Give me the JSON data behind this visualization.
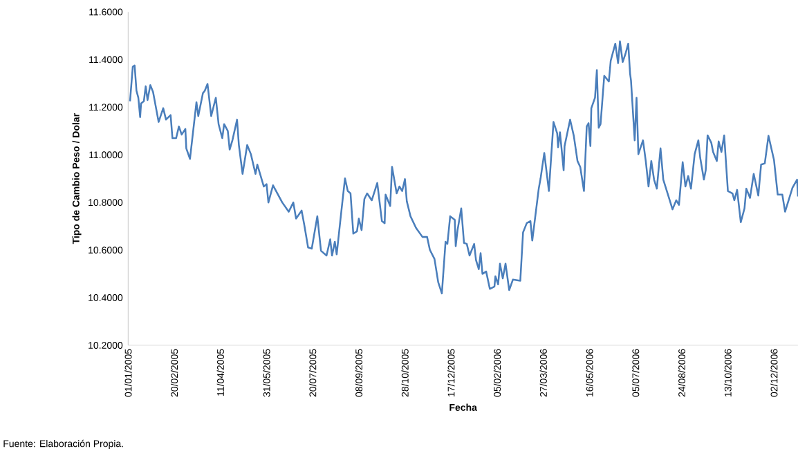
{
  "chart_data": {
    "type": "line",
    "xlabel": "Fecha",
    "ylabel": "Tipo de Cambio Peso / Dolar",
    "annotations": [
      "Fuente: Elaboración Propia."
    ],
    "xlim": [
      "2005-01-01",
      "2006-12-28"
    ],
    "ylim": [
      10.2,
      11.6
    ],
    "xticks": [
      {
        "value": "2005-01-01",
        "label": "01/01/2005"
      },
      {
        "value": "2005-02-20",
        "label": "20/02/2005"
      },
      {
        "value": "2005-04-11",
        "label": "11/04/2005"
      },
      {
        "value": "2005-05-31",
        "label": "31/05/2005"
      },
      {
        "value": "2005-07-20",
        "label": "20/07/2005"
      },
      {
        "value": "2005-09-08",
        "label": "08/09/2005"
      },
      {
        "value": "2005-10-28",
        "label": "28/10/2005"
      },
      {
        "value": "2005-12-17",
        "label": "17/12/2005"
      },
      {
        "value": "2006-02-05",
        "label": "05/02/2006"
      },
      {
        "value": "2006-03-27",
        "label": "27/03/2006"
      },
      {
        "value": "2006-05-16",
        "label": "16/05/2006"
      },
      {
        "value": "2006-07-05",
        "label": "05/07/2006"
      },
      {
        "value": "2006-08-24",
        "label": "24/08/2006"
      },
      {
        "value": "2006-10-13",
        "label": "13/10/2006"
      },
      {
        "value": "2006-12-02",
        "label": "02/12/2006"
      }
    ],
    "yticks": [
      {
        "value": 10.2,
        "label": "10.2000"
      },
      {
        "value": 10.4,
        "label": "10.4000"
      },
      {
        "value": 10.6,
        "label": "10.6000"
      },
      {
        "value": 10.8,
        "label": "10.8000"
      },
      {
        "value": 11.0,
        "label": "11.0000"
      },
      {
        "value": 11.2,
        "label": "11.2000"
      },
      {
        "value": 11.4,
        "label": "11.4000"
      },
      {
        "value": 11.6,
        "label": "11.6000"
      }
    ],
    "marker": "none",
    "line_style": "solid",
    "series": [
      {
        "color": "#4a7ebb",
        "x": [
          "2005-01-03",
          "2005-01-06",
          "2005-01-08",
          "2005-01-10",
          "2005-01-12",
          "2005-01-14",
          "2005-01-15",
          "2005-01-18",
          "2005-01-20",
          "2005-01-22",
          "2005-01-25",
          "2005-01-28",
          "2005-02-03",
          "2005-02-08",
          "2005-02-11",
          "2005-02-16",
          "2005-02-18",
          "2005-02-22",
          "2005-02-25",
          "2005-02-28",
          "2005-03-04",
          "2005-03-05",
          "2005-03-09",
          "2005-03-16",
          "2005-03-18",
          "2005-03-23",
          "2005-03-25",
          "2005-03-28",
          "2005-04-01",
          "2005-04-06",
          "2005-04-09",
          "2005-04-13",
          "2005-04-15",
          "2005-04-19",
          "2005-04-21",
          "2005-04-24",
          "2005-04-29",
          "2005-05-01",
          "2005-05-05",
          "2005-05-10",
          "2005-05-14",
          "2005-05-19",
          "2005-05-21",
          "2005-05-28",
          "2005-05-31",
          "2005-06-02",
          "2005-06-07",
          "2005-06-17",
          "2005-06-24",
          "2005-06-29",
          "2005-07-02",
          "2005-07-08",
          "2005-07-11",
          "2005-07-15",
          "2005-07-19",
          "2005-07-25",
          "2005-07-29",
          "2005-08-04",
          "2005-08-08",
          "2005-08-10",
          "2005-08-13",
          "2005-08-15",
          "2005-08-20",
          "2005-08-24",
          "2005-08-27",
          "2005-08-30",
          "2005-09-02",
          "2005-09-06",
          "2005-09-08",
          "2005-09-11",
          "2005-09-14",
          "2005-09-17",
          "2005-09-22",
          "2005-09-28",
          "2005-10-03",
          "2005-10-06",
          "2005-10-07",
          "2005-10-12",
          "2005-10-14",
          "2005-10-19",
          "2005-10-22",
          "2005-10-25",
          "2005-10-28",
          "2005-10-30",
          "2005-11-03",
          "2005-11-09",
          "2005-11-16",
          "2005-11-21",
          "2005-11-24",
          "2005-11-29",
          "2005-12-03",
          "2005-12-07",
          "2005-12-11",
          "2005-12-13",
          "2005-12-16",
          "2005-12-21",
          "2005-12-22",
          "2005-12-24",
          "2005-12-28",
          "2005-12-31",
          "2006-01-03",
          "2006-01-06",
          "2006-01-11",
          "2006-01-13",
          "2006-01-16",
          "2006-01-18",
          "2006-01-20",
          "2006-01-24",
          "2006-01-28",
          "2006-02-02",
          "2006-02-03",
          "2006-02-06",
          "2006-02-08",
          "2006-02-11",
          "2006-02-14",
          "2006-02-18",
          "2006-02-22",
          "2006-03-02",
          "2006-03-05",
          "2006-03-09",
          "2006-03-13",
          "2006-03-15",
          "2006-03-22",
          "2006-03-24",
          "2006-03-28",
          "2006-04-02",
          "2006-04-07",
          "2006-04-11",
          "2006-04-12",
          "2006-04-14",
          "2006-04-18",
          "2006-04-19",
          "2006-04-25",
          "2006-04-29",
          "2006-05-03",
          "2006-05-06",
          "2006-05-10",
          "2006-05-13",
          "2006-05-15",
          "2006-05-17",
          "2006-05-18",
          "2006-05-22",
          "2006-05-24",
          "2006-05-26",
          "2006-05-28",
          "2006-06-01",
          "2006-06-06",
          "2006-06-08",
          "2006-06-13",
          "2006-06-16",
          "2006-06-18",
          "2006-06-21",
          "2006-06-24",
          "2006-06-27",
          "2006-06-29",
          "2006-06-30",
          "2006-07-04",
          "2006-07-06",
          "2006-07-08",
          "2006-07-13",
          "2006-07-16",
          "2006-07-19",
          "2006-07-22",
          "2006-07-25",
          "2006-07-28",
          "2006-08-01",
          "2006-08-04",
          "2006-08-11",
          "2006-08-14",
          "2006-08-18",
          "2006-08-21",
          "2006-08-25",
          "2006-08-28",
          "2006-08-31",
          "2006-09-03",
          "2006-09-07",
          "2006-09-11",
          "2006-09-13",
          "2006-09-17",
          "2006-09-19",
          "2006-09-21",
          "2006-09-25",
          "2006-09-27",
          "2006-10-01",
          "2006-10-03",
          "2006-10-06",
          "2006-10-09",
          "2006-10-13",
          "2006-10-18",
          "2006-10-20",
          "2006-10-23",
          "2006-10-27",
          "2006-10-31",
          "2006-11-02",
          "2006-11-06",
          "2006-11-10",
          "2006-11-15",
          "2006-11-18",
          "2006-11-22",
          "2006-11-26",
          "2006-11-30",
          "2006-12-02",
          "2006-12-06",
          "2006-12-11",
          "2006-12-14",
          "2006-12-22",
          "2006-12-27",
          "2006-12-28"
        ],
        "values": [
          11.225,
          11.37,
          11.375,
          11.269,
          11.24,
          11.158,
          11.216,
          11.225,
          11.288,
          11.23,
          11.293,
          11.264,
          11.138,
          11.196,
          11.148,
          11.167,
          11.07,
          11.07,
          11.119,
          11.085,
          11.109,
          11.027,
          10.983,
          11.221,
          11.163,
          11.259,
          11.269,
          11.298,
          11.163,
          11.24,
          11.129,
          11.07,
          11.129,
          11.1,
          11.022,
          11.061,
          11.148,
          11.041,
          10.92,
          11.041,
          11.003,
          10.92,
          10.959,
          10.867,
          10.877,
          10.8,
          10.872,
          10.8,
          10.761,
          10.8,
          10.732,
          10.766,
          10.703,
          10.611,
          10.606,
          10.742,
          10.597,
          10.577,
          10.645,
          10.577,
          10.635,
          10.582,
          10.761,
          10.901,
          10.848,
          10.838,
          10.669,
          10.679,
          10.732,
          10.684,
          10.814,
          10.838,
          10.809,
          10.882,
          10.722,
          10.713,
          10.833,
          10.785,
          10.95,
          10.838,
          10.867,
          10.848,
          10.898,
          10.805,
          10.742,
          10.693,
          10.655,
          10.655,
          10.601,
          10.563,
          10.466,
          10.418,
          10.635,
          10.626,
          10.742,
          10.727,
          10.616,
          10.684,
          10.775,
          10.63,
          10.626,
          10.577,
          10.626,
          10.558,
          10.52,
          10.587,
          10.5,
          10.51,
          10.437,
          10.447,
          10.49,
          10.456,
          10.543,
          10.481,
          10.543,
          10.432,
          10.476,
          10.471,
          10.674,
          10.713,
          10.722,
          10.64,
          10.858,
          10.901,
          11.008,
          10.848,
          11.138,
          11.09,
          11.032,
          11.095,
          10.935,
          11.037,
          11.148,
          11.08,
          10.974,
          10.949,
          10.848,
          11.119,
          11.133,
          11.037,
          11.196,
          11.24,
          11.356,
          11.114,
          11.129,
          11.332,
          11.308,
          11.395,
          11.467,
          11.385,
          11.477,
          11.39,
          11.424,
          11.467,
          11.341,
          11.312,
          11.061,
          11.24,
          11.003,
          11.061,
          10.974,
          10.867,
          10.974,
          10.896,
          10.858,
          11.027,
          10.896,
          10.809,
          10.771,
          10.809,
          10.79,
          10.969,
          10.867,
          10.911,
          10.858,
          11.003,
          11.061,
          10.988,
          10.896,
          10.935,
          11.082,
          11.051,
          11.012,
          10.974,
          11.056,
          11.012,
          11.082,
          10.848,
          10.838,
          10.809,
          10.853,
          10.717,
          10.775,
          10.858,
          10.819,
          10.92,
          10.829,
          10.959,
          10.964,
          11.08,
          11.012,
          10.978,
          10.833,
          10.833,
          10.761,
          10.862,
          10.896,
          10.825
        ]
      }
    ]
  }
}
